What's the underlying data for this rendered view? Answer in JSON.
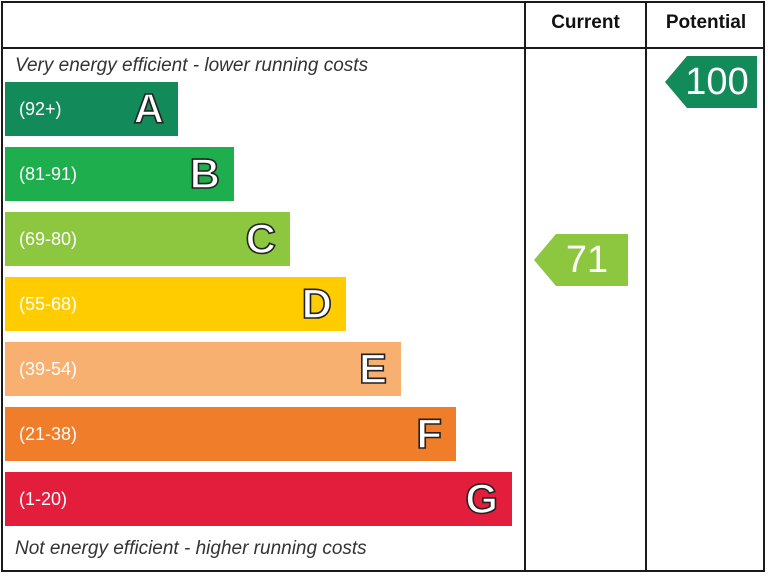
{
  "header": {
    "current_label": "Current",
    "potential_label": "Potential"
  },
  "captions": {
    "top": "Very energy efficient - lower running costs",
    "bottom": "Not energy efficient - higher running costs"
  },
  "chart_data": {
    "type": "bar",
    "categories": [
      "A",
      "B",
      "C",
      "D",
      "E",
      "F",
      "G"
    ],
    "ranges": [
      "(92+)",
      "(81-91)",
      "(69-80)",
      "(55-68)",
      "(39-54)",
      "(21-38)",
      "(1-20)"
    ],
    "colors": [
      "#138a5a",
      "#1eae4e",
      "#8dc63f",
      "#ffcc00",
      "#f7b06f",
      "#ef7d2a",
      "#e31d3c"
    ],
    "current": {
      "value": 71,
      "band": "C",
      "color": "#8dc63f"
    },
    "potential": {
      "value": 100,
      "band": "A",
      "color": "#138a5a"
    }
  }
}
